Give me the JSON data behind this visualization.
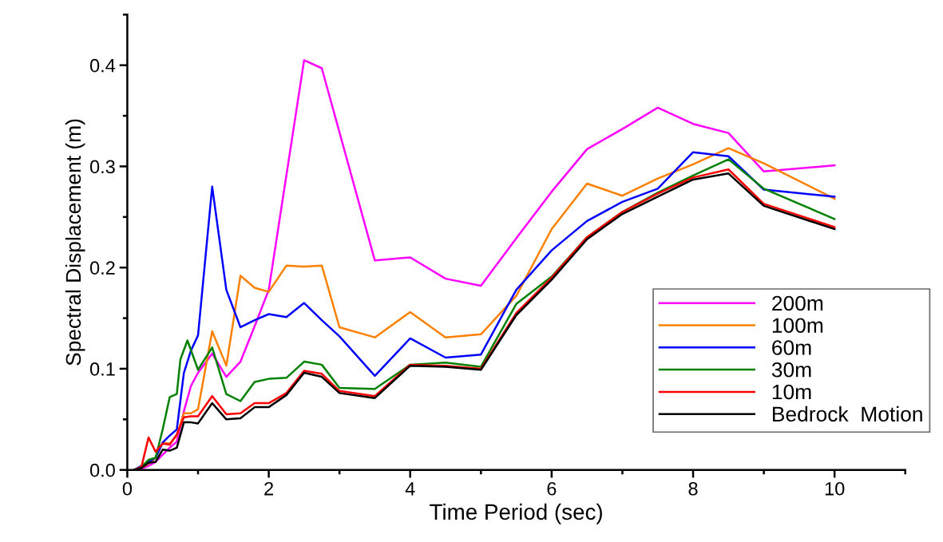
{
  "chart_data": {
    "type": "line",
    "xlabel": "Time Period (sec)",
    "ylabel": "Spectral Displacement (m)",
    "xlim": [
      0,
      11
    ],
    "ylim": [
      0,
      0.45
    ],
    "xticks": [
      0,
      {
        "value": 1,
        "label": null
      },
      2,
      {
        "value": 3,
        "label": null
      },
      4,
      {
        "value": 5,
        "label": null
      },
      6,
      {
        "value": 7,
        "label": null
      },
      8,
      {
        "value": 9,
        "label": null
      },
      10,
      {
        "value": 11,
        "label": null
      }
    ],
    "yticks": [
      {
        "value": 0,
        "label": "0.0"
      },
      {
        "value": 0.05,
        "label": null
      },
      0.1,
      {
        "value": 0.15,
        "label": null
      },
      0.2,
      {
        "value": 0.25,
        "label": null
      },
      0.3,
      {
        "value": 0.35,
        "label": null
      },
      0.4,
      {
        "value": 0.45,
        "label": null
      }
    ],
    "legend": "bottom right",
    "grid": false,
    "marker": "none",
    "line_style": "solid",
    "series": [
      {
        "name": "200m",
        "color": "#ff00ff",
        "x": [
          0.1,
          0.2,
          0.3,
          0.4,
          0.5,
          0.6,
          0.7,
          0.8,
          0.9,
          1.0,
          1.2,
          1.4,
          1.6,
          1.8,
          2.0,
          2.5,
          2.75,
          3.5,
          4.0,
          4.5,
          5.0,
          5.5,
          6.0,
          6.5,
          7.0,
          7.5,
          8.0,
          8.5,
          9.0,
          10.0
        ],
        "values": [
          0,
          0.001,
          0.004,
          0.008,
          0.015,
          0.022,
          0.028,
          0.058,
          0.083,
          0.096,
          0.115,
          0.092,
          0.107,
          0.142,
          0.178,
          0.405,
          0.397,
          0.207,
          0.21,
          0.189,
          0.182,
          0.229,
          0.275,
          0.317,
          0.337,
          0.358,
          0.342,
          0.333,
          0.295,
          0.301
        ]
      },
      {
        "name": "100m",
        "color": "#ff8000",
        "x": [
          0.1,
          0.2,
          0.3,
          0.4,
          0.5,
          0.6,
          0.7,
          0.8,
          0.9,
          1.0,
          1.2,
          1.4,
          1.6,
          1.8,
          2.0,
          2.25,
          2.5,
          2.75,
          3.0,
          3.5,
          4.0,
          4.5,
          5.0,
          5.5,
          6.0,
          6.5,
          7.0,
          7.5,
          8.0,
          8.5,
          9.0,
          10.0
        ],
        "values": [
          0,
          0.002,
          0.006,
          0.012,
          0.027,
          0.026,
          0.034,
          0.056,
          0.056,
          0.06,
          0.137,
          0.103,
          0.192,
          0.18,
          0.176,
          0.202,
          0.201,
          0.202,
          0.141,
          0.131,
          0.156,
          0.131,
          0.134,
          0.172,
          0.238,
          0.283,
          0.271,
          0.288,
          0.302,
          0.318,
          0.303,
          0.268
        ]
      },
      {
        "name": "60m",
        "color": "#0000ff",
        "x": [
          0.1,
          0.3,
          0.4,
          0.5,
          0.6,
          0.7,
          0.8,
          0.9,
          1.0,
          1.2,
          1.4,
          1.6,
          1.8,
          2.0,
          2.25,
          2.5,
          2.75,
          3.0,
          3.5,
          4.0,
          4.5,
          5.0,
          5.5,
          6.0,
          6.5,
          7.0,
          7.5,
          8.0,
          8.5,
          9.0,
          10.0
        ],
        "values": [
          0,
          0.008,
          0.012,
          0.027,
          0.034,
          0.04,
          0.096,
          0.118,
          0.133,
          0.28,
          0.178,
          0.141,
          0.148,
          0.154,
          0.151,
          0.165,
          0.148,
          0.132,
          0.093,
          0.13,
          0.111,
          0.114,
          0.178,
          0.217,
          0.246,
          0.265,
          0.278,
          0.314,
          0.31,
          0.277,
          0.27
        ]
      },
      {
        "name": "30m",
        "color": "#008000",
        "x": [
          0.1,
          0.2,
          0.3,
          0.4,
          0.5,
          0.6,
          0.7,
          0.75,
          0.85,
          1.0,
          1.2,
          1.4,
          1.6,
          1.8,
          2.0,
          2.25,
          2.5,
          2.75,
          3.0,
          3.5,
          4.0,
          4.5,
          5.0,
          5.5,
          6.0,
          6.5,
          7.0,
          7.5,
          8.0,
          8.5,
          9.0,
          10.0
        ],
        "values": [
          0,
          0.003,
          0.01,
          0.012,
          0.04,
          0.072,
          0.075,
          0.109,
          0.128,
          0.099,
          0.121,
          0.075,
          0.068,
          0.087,
          0.09,
          0.091,
          0.107,
          0.104,
          0.081,
          0.08,
          0.104,
          0.106,
          0.102,
          0.164,
          0.191,
          0.23,
          0.255,
          0.274,
          0.291,
          0.307,
          0.278,
          0.248
        ]
      },
      {
        "name": "10m",
        "color": "#ff0000",
        "x": [
          0.1,
          0.2,
          0.3,
          0.4,
          0.5,
          0.6,
          0.7,
          0.8,
          0.9,
          1.0,
          1.2,
          1.4,
          1.6,
          1.8,
          2.0,
          2.25,
          2.5,
          2.75,
          3.0,
          3.5,
          4.0,
          4.5,
          5.0,
          5.5,
          6.0,
          6.5,
          7.0,
          7.5,
          8.0,
          8.5,
          9.0,
          10.0
        ],
        "values": [
          0,
          0.003,
          0.032,
          0.018,
          0.026,
          0.025,
          0.035,
          0.052,
          0.053,
          0.053,
          0.073,
          0.055,
          0.056,
          0.066,
          0.066,
          0.076,
          0.098,
          0.095,
          0.078,
          0.073,
          0.104,
          0.103,
          0.1,
          0.155,
          0.19,
          0.23,
          0.255,
          0.273,
          0.289,
          0.297,
          0.263,
          0.24
        ]
      },
      {
        "name": "Bedrock  Motion",
        "color": "#000000",
        "x": [
          0.1,
          0.2,
          0.3,
          0.4,
          0.5,
          0.6,
          0.7,
          0.8,
          0.9,
          1.0,
          1.2,
          1.4,
          1.6,
          1.8,
          2.0,
          2.25,
          2.5,
          2.75,
          3.0,
          3.5,
          4.0,
          4.5,
          5.0,
          5.5,
          6.0,
          6.5,
          7.0,
          7.5,
          8.0,
          8.5,
          9.0,
          10.0
        ],
        "values": [
          0,
          0.002,
          0.007,
          0.008,
          0.02,
          0.019,
          0.022,
          0.047,
          0.047,
          0.046,
          0.066,
          0.05,
          0.051,
          0.062,
          0.062,
          0.074,
          0.096,
          0.092,
          0.076,
          0.071,
          0.103,
          0.102,
          0.099,
          0.153,
          0.188,
          0.228,
          0.253,
          0.27,
          0.287,
          0.293,
          0.261,
          0.238
        ]
      }
    ]
  }
}
